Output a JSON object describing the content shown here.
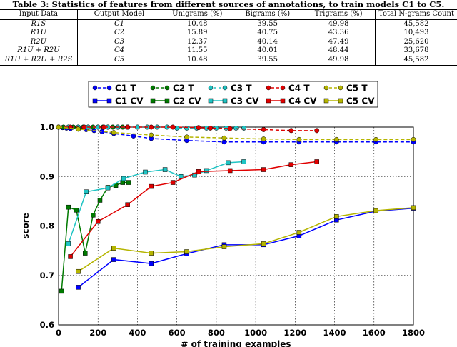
{
  "caption": "Table 3: Statistics of features from different sources of annotations, to train models C1 to C5.",
  "table": {
    "headers": [
      "Input Data",
      "Output Model",
      "Unigrams (%)",
      "Bigrams (%)",
      "Trigrams (%)",
      "Total N-grams Count"
    ],
    "rows": [
      [
        "R1S",
        "C1",
        "10.48",
        "39.55",
        "49.98",
        "45,582"
      ],
      [
        "R1U",
        "C2",
        "15.89",
        "40.75",
        "43.36",
        "10,493"
      ],
      [
        "R2U",
        "C3",
        "12.37",
        "40.14",
        "47.49",
        "25,620"
      ],
      [
        "R1U + R2U",
        "C4",
        "11.55",
        "40.01",
        "48.44",
        "33,678"
      ],
      [
        "R1U + R2U + R2S",
        "C5",
        "10.48",
        "39.55",
        "49.98",
        "45,582"
      ]
    ]
  },
  "chart_data": {
    "type": "line",
    "xlabel": "# of training examples",
    "ylabel": "score",
    "xlim": [
      0,
      1800
    ],
    "ylim": [
      0.6,
      1.0
    ],
    "xticks": [
      "0",
      "200",
      "400",
      "600",
      "800",
      "1000",
      "1200",
      "1400",
      "1600",
      "1800"
    ],
    "yticks": [
      "0.6",
      "0.7",
      "0.8",
      "0.9",
      "1.0"
    ],
    "grid": true,
    "legend_position": "top, outside, 5 columns",
    "series": [
      {
        "name": "C1 T",
        "color": "#0000ff",
        "style": "dashed",
        "marker": "circle",
        "x": [
          0,
          20,
          40,
          60,
          100,
          140,
          180,
          220,
          280,
          380,
          470,
          650,
          840,
          1040,
          1220,
          1410,
          1610,
          1800
        ],
        "y": [
          1.0,
          0.999,
          0.998,
          0.997,
          0.996,
          0.995,
          0.993,
          0.991,
          0.987,
          0.982,
          0.977,
          0.973,
          0.97,
          0.97,
          0.97,
          0.97,
          0.97,
          0.97
        ]
      },
      {
        "name": "C1 CV",
        "color": "#0000ff",
        "style": "solid",
        "marker": "square",
        "x": [
          100,
          280,
          470,
          650,
          840,
          1040,
          1220,
          1410,
          1610,
          1800
        ],
        "y": [
          0.676,
          0.732,
          0.724,
          0.744,
          0.762,
          0.762,
          0.78,
          0.812,
          0.83,
          0.836
        ]
      },
      {
        "name": "C2 T",
        "color": "#007a00",
        "style": "dashed",
        "marker": "circle",
        "x": [
          0,
          25,
          50,
          75,
          100,
          125,
          150,
          175,
          200,
          225,
          250,
          275,
          300,
          325,
          350
        ],
        "y": [
          1.0,
          1.0,
          1.0,
          1.0,
          1.0,
          1.0,
          1.0,
          1.0,
          1.0,
          1.0,
          1.0,
          1.0,
          1.0,
          1.0,
          1.0
        ]
      },
      {
        "name": "C2 CV",
        "color": "#007a00",
        "style": "solid",
        "marker": "square",
        "x": [
          15,
          50,
          90,
          135,
          175,
          210,
          250,
          290,
          325,
          355
        ],
        "y": [
          0.668,
          0.838,
          0.832,
          0.745,
          0.822,
          0.852,
          0.878,
          0.882,
          0.888,
          0.888
        ]
      },
      {
        "name": "C3 T",
        "color": "#1fc4c4",
        "style": "dashed",
        "marker": "circle",
        "x": [
          0,
          50,
          100,
          150,
          200,
          250,
          300,
          350,
          400,
          450,
          500,
          550,
          600,
          650,
          700,
          750,
          800,
          850,
          900,
          940
        ],
        "y": [
          1.0,
          1.0,
          1.0,
          1.0,
          1.0,
          1.0,
          1.0,
          1.0,
          1.0,
          1.0,
          1.0,
          1.0,
          0.998,
          0.998,
          0.998,
          0.998,
          0.998,
          0.998,
          0.998,
          0.998
        ]
      },
      {
        "name": "C3 CV",
        "color": "#1fc4c4",
        "style": "solid",
        "marker": "square",
        "x": [
          50,
          140,
          250,
          330,
          440,
          540,
          620,
          690,
          750,
          860,
          940
        ],
        "y": [
          0.764,
          0.869,
          0.877,
          0.896,
          0.909,
          0.914,
          0.9,
          0.903,
          0.912,
          0.928,
          0.93
        ],
        "points": [
          [
            50,
            0.764
          ],
          [
            140,
            0.869
          ],
          [
            250,
            0.877
          ],
          [
            330,
            0.896
          ],
          [
            440,
            0.909
          ],
          [
            540,
            0.914
          ],
          [
            620,
            0.9
          ],
          [
            690,
            0.903
          ],
          [
            750,
            0.912
          ],
          [
            860,
            0.928
          ],
          [
            940,
            0.93
          ]
        ]
      },
      {
        "name": "C4 T",
        "color": "#e00000",
        "style": "dashed",
        "marker": "circle",
        "x": [
          0,
          60,
          130,
          230,
          350,
          470,
          580,
          710,
          770,
          870,
          1040,
          1180,
          1310
        ],
        "y": [
          1.0,
          1.0,
          1.0,
          1.0,
          1.0,
          1.0,
          1.0,
          0.999,
          0.998,
          0.997,
          0.995,
          0.993,
          0.993
        ]
      },
      {
        "name": "C4 CV",
        "color": "#e00000",
        "style": "solid",
        "marker": "square",
        "x": [
          60,
          200,
          350,
          470,
          580,
          710,
          870,
          1040,
          1180,
          1310
        ],
        "y": [
          0.738,
          0.809,
          0.843,
          0.88,
          0.888,
          0.91,
          0.912,
          0.914,
          0.924,
          0.93
        ]
      },
      {
        "name": "C5 T",
        "color": "#b5b500",
        "style": "dashed",
        "marker": "circle",
        "x": [
          0,
          100,
          280,
          470,
          650,
          840,
          1040,
          1220,
          1410,
          1610,
          1800
        ],
        "y": [
          1.0,
          0.996,
          0.989,
          0.984,
          0.98,
          0.978,
          0.976,
          0.975,
          0.975,
          0.975,
          0.975
        ]
      },
      {
        "name": "C5 CV",
        "color": "#b5b500",
        "style": "solid",
        "marker": "square",
        "x": [
          100,
          280,
          470,
          650,
          840,
          1040,
          1220,
          1410,
          1610,
          1800
        ],
        "y": [
          0.708,
          0.755,
          0.745,
          0.748,
          0.758,
          0.764,
          0.787,
          0.819,
          0.831,
          0.837
        ]
      }
    ]
  }
}
